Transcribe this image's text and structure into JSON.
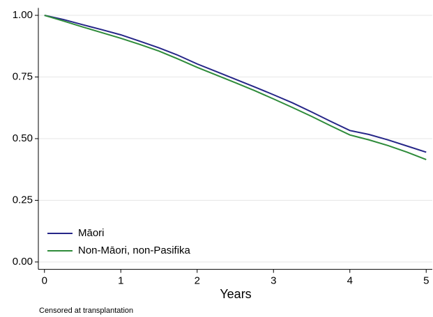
{
  "chart_data": {
    "type": "line",
    "x_label": "Years",
    "note": "Censored at transplantation",
    "x": [
      0,
      0.25,
      0.5,
      0.75,
      1,
      1.25,
      1.5,
      1.75,
      2,
      2.25,
      2.5,
      2.75,
      3,
      3.25,
      3.5,
      3.75,
      4,
      4.25,
      4.5,
      4.75,
      5
    ],
    "series": [
      {
        "name": "Māori",
        "color": "#262688",
        "values": [
          1.0,
          0.983,
          0.962,
          0.942,
          0.921,
          0.895,
          0.868,
          0.838,
          0.803,
          0.772,
          0.741,
          0.71,
          0.678,
          0.645,
          0.608,
          0.57,
          0.533,
          0.517,
          0.495,
          0.47,
          0.445
        ]
      },
      {
        "name": "Non-Māori, non-Pasifika",
        "color": "#2e8b3a",
        "values": [
          1.0,
          0.977,
          0.953,
          0.93,
          0.907,
          0.882,
          0.855,
          0.823,
          0.789,
          0.758,
          0.727,
          0.695,
          0.661,
          0.626,
          0.59,
          0.552,
          0.515,
          0.495,
          0.472,
          0.445,
          0.415
        ]
      }
    ],
    "xlim": [
      -0.08,
      5.08
    ],
    "xticks": [
      0,
      1,
      2,
      3,
      4,
      5
    ],
    "ylim": [
      -0.03,
      1.03
    ],
    "yticks": [
      {
        "value": 0,
        "label": "0.00"
      },
      {
        "value": 0.25,
        "label": "0.25"
      },
      {
        "value": 0.5,
        "label": "0.50"
      },
      {
        "value": 0.75,
        "label": "0.75"
      },
      {
        "value": 1,
        "label": "1.00"
      }
    ],
    "grid": true,
    "legend": "lower left"
  }
}
